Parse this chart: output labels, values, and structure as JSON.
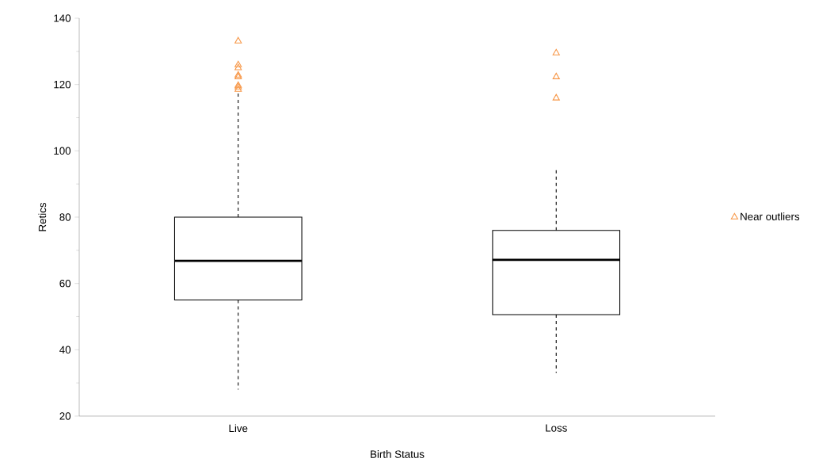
{
  "chart_data": {
    "type": "box",
    "xlabel": "Birth Status",
    "ylabel": "Retics",
    "categories": [
      "Live",
      "Loss"
    ],
    "boxes": [
      {
        "low": 28,
        "q1": 55,
        "median": 66.8,
        "q3": 80,
        "high": 117.3
      },
      {
        "low": 33,
        "q1": 50.6,
        "median": 67.1,
        "q3": 76,
        "high": 95
      }
    ],
    "series": [
      {
        "name": "Near outliers",
        "type": "scatter",
        "color": "#f79646",
        "marker": "triangle",
        "x": [
          "Live",
          "Live",
          "Live",
          "Live",
          "Live",
          "Live",
          "Live",
          "Live",
          "Loss",
          "Loss",
          "Loss"
        ],
        "values": [
          133.1,
          125.9,
          125,
          122.3,
          122.8,
          119.7,
          119.2,
          118.5,
          129.5,
          122.3,
          115.9
        ]
      }
    ],
    "ylim": [
      20,
      140
    ],
    "yticks": [
      20,
      40,
      60,
      80,
      100,
      120,
      140
    ],
    "legend": "right"
  }
}
